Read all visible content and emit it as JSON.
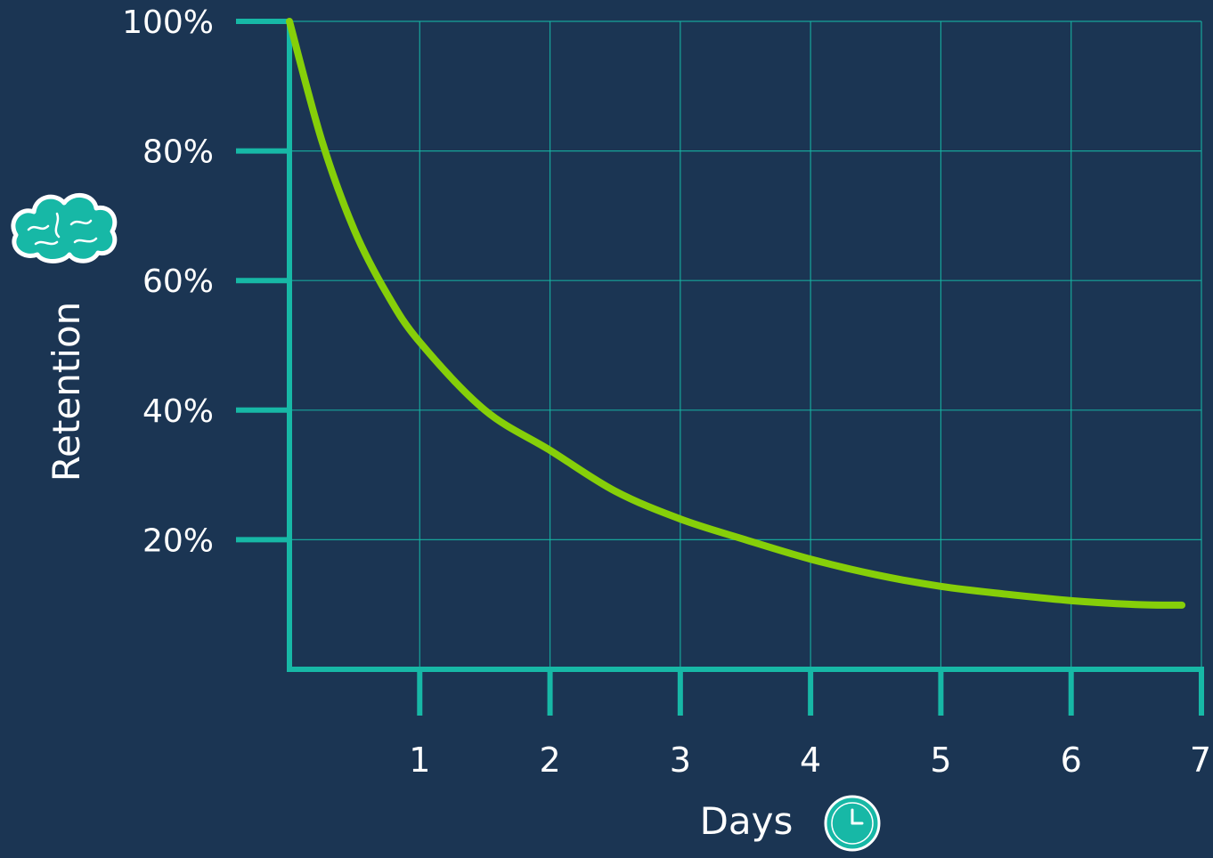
{
  "colors": {
    "background": "#1b3553",
    "axis": "#17b8a6",
    "grid": "#17b8a6",
    "curve": "#86cf09",
    "text": "#ffffff",
    "icon_fill": "#17b8a6",
    "icon_outline": "#ffffff"
  },
  "icons": {
    "y_axis_icon": "brain-icon",
    "x_axis_icon": "clock-icon"
  },
  "chart_data": {
    "type": "line",
    "title": "",
    "xlabel": "Days",
    "ylabel": "Retention",
    "xlim": [
      0,
      7
    ],
    "ylim": [
      0,
      100
    ],
    "x_ticks": [
      "1",
      "2",
      "3",
      "4",
      "5",
      "6",
      "7"
    ],
    "y_ticks": [
      "20%",
      "40%",
      "60%",
      "80%",
      "100%"
    ],
    "grid": true,
    "legend": "none",
    "series": [
      {
        "x": [
          0,
          0.25,
          0.5,
          0.75,
          1,
          1.5,
          2,
          2.5,
          3,
          3.5,
          4,
          4.5,
          5,
          5.5,
          6,
          6.5,
          6.85
        ],
        "y": [
          100,
          81.5,
          67.7,
          57.9,
          50.5,
          40.0,
          33.8,
          27.5,
          23.2,
          20.0,
          17.0,
          14.6,
          12.8,
          11.6,
          10.6,
          10.0,
          9.9
        ]
      }
    ]
  }
}
